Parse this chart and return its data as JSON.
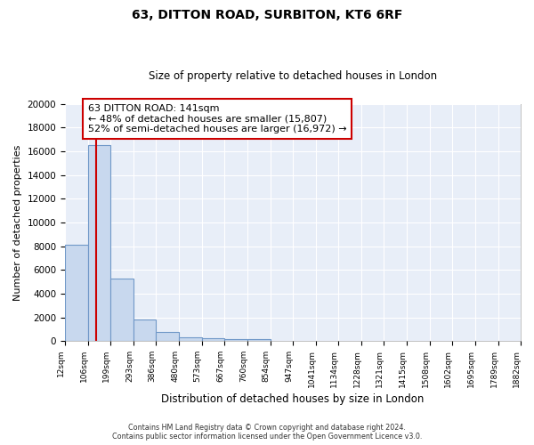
{
  "title1": "63, DITTON ROAD, SURBITON, KT6 6RF",
  "title2": "Size of property relative to detached houses in London",
  "xlabel": "Distribution of detached houses by size in London",
  "ylabel": "Number of detached properties",
  "bar_color": "#c8d8ee",
  "bar_edge_color": "#7098c8",
  "background_color": "#e8eef8",
  "grid_color": "#ffffff",
  "bin_edges": [
    12,
    106,
    199,
    293,
    386,
    480,
    573,
    667,
    760,
    854,
    947,
    1041,
    1134,
    1228,
    1321,
    1415,
    1508,
    1602,
    1695,
    1789,
    1882
  ],
  "bar_heights": [
    8100,
    16500,
    5300,
    1850,
    750,
    300,
    220,
    200,
    170,
    0,
    0,
    0,
    0,
    0,
    0,
    0,
    0,
    0,
    0,
    0
  ],
  "property_size": 141,
  "red_line_color": "#cc0000",
  "annotation_line1": "63 DITTON ROAD: 141sqm",
  "annotation_line2": "← 48% of detached houses are smaller (15,807)",
  "annotation_line3": "52% of semi-detached houses are larger (16,972) →",
  "annotation_box_color": "#ffffff",
  "annotation_box_edge": "#cc0000",
  "ylim": [
    0,
    20000
  ],
  "yticks": [
    0,
    2000,
    4000,
    6000,
    8000,
    10000,
    12000,
    14000,
    16000,
    18000,
    20000
  ],
  "footnote": "Contains HM Land Registry data © Crown copyright and database right 2024.\nContains public sector information licensed under the Open Government Licence v3.0."
}
